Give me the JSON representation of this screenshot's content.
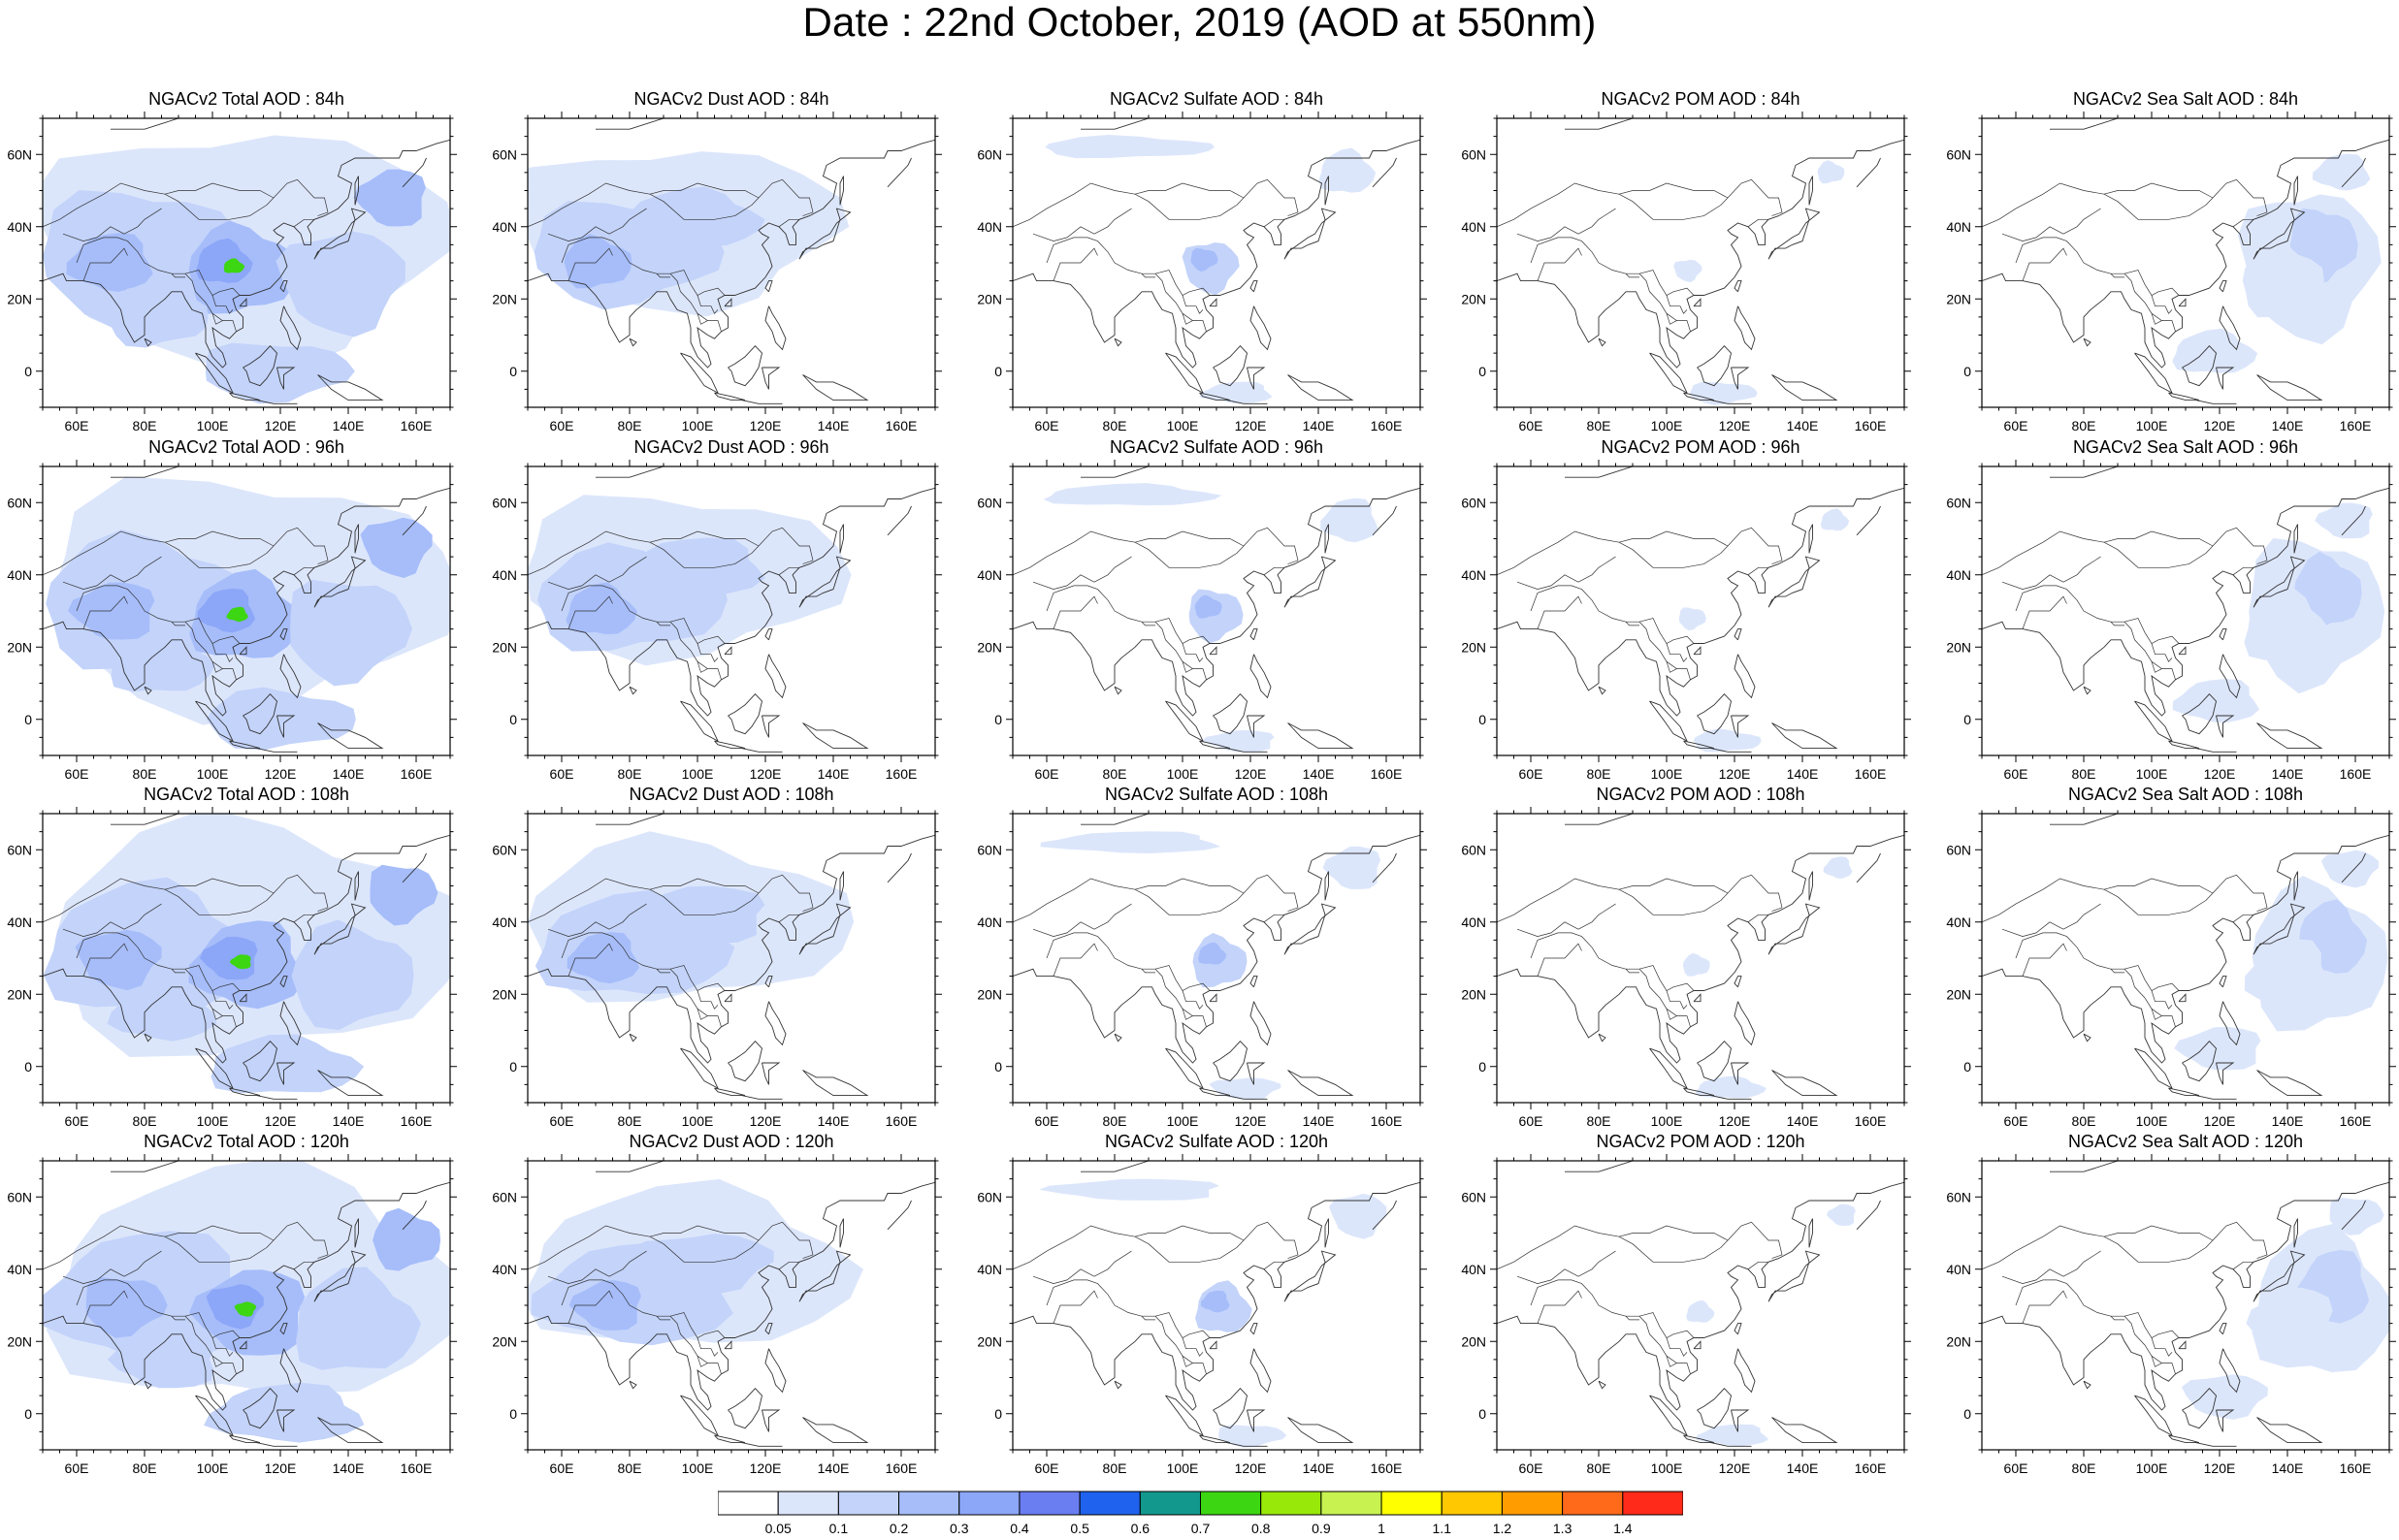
{
  "page": {
    "title": "Date : 22nd October, 2019 (AOD at 550nm)"
  },
  "map_axes": {
    "lon_ticks": [
      "60E",
      "80E",
      "100E",
      "120E",
      "140E",
      "160E"
    ],
    "lat_ticks": [
      "60N",
      "40N",
      "20N",
      "0"
    ],
    "lon_values": [
      60,
      80,
      100,
      120,
      140,
      160
    ],
    "lat_values": [
      60,
      40,
      20,
      0
    ],
    "lon_range": [
      50,
      170
    ],
    "lat_range": [
      -10,
      70
    ]
  },
  "species": [
    "Total",
    "Dust",
    "Sulfate",
    "POM",
    "Sea Salt"
  ],
  "forecast_hours": [
    "84h",
    "96h",
    "108h",
    "120h"
  ],
  "panels": [
    [
      {
        "title": "NGACv2 Total AOD : 84h",
        "species": "Total",
        "hour": "84h"
      },
      {
        "title": "NGACv2 Dust AOD : 84h",
        "species": "Dust",
        "hour": "84h"
      },
      {
        "title": "NGACv2 Sulfate AOD : 84h",
        "species": "Sulfate",
        "hour": "84h"
      },
      {
        "title": "NGACv2 POM AOD : 84h",
        "species": "POM",
        "hour": "84h"
      },
      {
        "title": "NGACv2 Sea Salt AOD : 84h",
        "species": "Sea Salt",
        "hour": "84h"
      }
    ],
    [
      {
        "title": "NGACv2 Total AOD : 96h",
        "species": "Total",
        "hour": "96h"
      },
      {
        "title": "NGACv2 Dust AOD : 96h",
        "species": "Dust",
        "hour": "96h"
      },
      {
        "title": "NGACv2 Sulfate AOD : 96h",
        "species": "Sulfate",
        "hour": "96h"
      },
      {
        "title": "NGACv2 POM AOD : 96h",
        "species": "POM",
        "hour": "96h"
      },
      {
        "title": "NGACv2 Sea Salt AOD : 96h",
        "species": "Sea Salt",
        "hour": "96h"
      }
    ],
    [
      {
        "title": "NGACv2 Total AOD : 108h",
        "species": "Total",
        "hour": "108h"
      },
      {
        "title": "NGACv2 Dust AOD : 108h",
        "species": "Dust",
        "hour": "108h"
      },
      {
        "title": "NGACv2 Sulfate AOD : 108h",
        "species": "Sulfate",
        "hour": "108h"
      },
      {
        "title": "NGACv2 POM AOD : 108h",
        "species": "POM",
        "hour": "108h"
      },
      {
        "title": "NGACv2 Sea Salt AOD : 108h",
        "species": "Sea Salt",
        "hour": "108h"
      }
    ],
    [
      {
        "title": "NGACv2 Total AOD : 120h",
        "species": "Total",
        "hour": "120h"
      },
      {
        "title": "NGACv2 Dust AOD : 120h",
        "species": "Dust",
        "hour": "120h"
      },
      {
        "title": "NGACv2 Sulfate AOD : 120h",
        "species": "Sulfate",
        "hour": "120h"
      },
      {
        "title": "NGACv2 POM AOD : 120h",
        "species": "POM",
        "hour": "120h"
      },
      {
        "title": "NGACv2 Sea Salt  AOD : 120h",
        "species": "Sea Salt",
        "hour": "120h"
      }
    ]
  ],
  "colorbar": {
    "labels": [
      "0.05",
      "0.1",
      "0.2",
      "0.3",
      "0.4",
      "0.5",
      "0.6",
      "0.7",
      "0.8",
      "0.9",
      "1",
      "1.1",
      "1.2",
      "1.3",
      "1.4"
    ],
    "colors": [
      "#ffffff",
      "#dce6fb",
      "#c3d3fa",
      "#a6bdfa",
      "#8ca6f8",
      "#6a7ef2",
      "#1f62ee",
      "#13988e",
      "#3cd612",
      "#98e80a",
      "#c7f250",
      "#ffff00",
      "#ffc800",
      "#ff9d00",
      "#ff6a1a",
      "#ff2a1a"
    ]
  }
}
